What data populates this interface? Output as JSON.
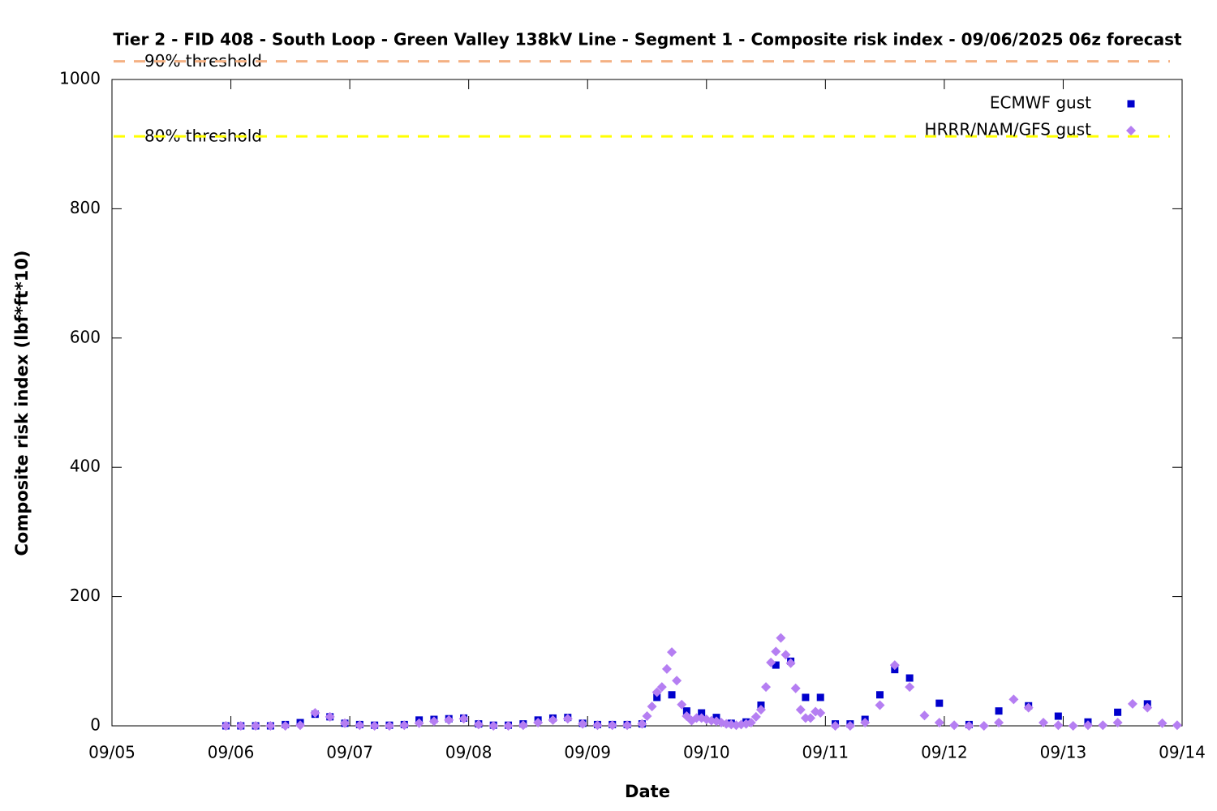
{
  "chart_data": {
    "type": "scatter",
    "title": "Tier 2 - FID 408 - South Loop - Green Valley 138kV Line - Segment 1 - Composite risk index - 09/06/2025 06z forecast",
    "x_label": "Date",
    "y_label": "Composite risk index (lbf*ft*10)",
    "xlim": [
      0,
      216
    ],
    "xticks": [
      {
        "value": 0,
        "label": "09/05"
      },
      {
        "value": 24,
        "label": "09/06"
      },
      {
        "value": 48,
        "label": "09/07"
      },
      {
        "value": 72,
        "label": "09/08"
      },
      {
        "value": 96,
        "label": "09/09"
      },
      {
        "value": 120,
        "label": "09/10"
      },
      {
        "value": 144,
        "label": "09/11"
      },
      {
        "value": 168,
        "label": "09/12"
      },
      {
        "value": 192,
        "label": "09/13"
      },
      {
        "value": 216,
        "label": "09/14"
      }
    ],
    "ylim": [
      0,
      1000
    ],
    "yticks": [
      0,
      200,
      400,
      600,
      800,
      1000
    ],
    "legend": "top-right",
    "thresholds": [
      {
        "name": "90% threshold",
        "value": 1028,
        "color": "#f4b183"
      },
      {
        "name": "80% threshold",
        "value": 912,
        "color": "#ffff00"
      }
    ],
    "series": [
      {
        "name": "ECMWF gust",
        "color": "#0000cc",
        "marker": "square",
        "x": [
          23,
          26,
          29,
          32,
          35,
          38,
          41,
          44,
          47,
          50,
          53,
          56,
          59,
          62,
          65,
          68,
          71,
          74,
          77,
          80,
          83,
          86,
          89,
          92,
          95,
          98,
          101,
          104,
          107,
          110,
          113,
          116,
          119,
          122,
          125,
          128,
          131,
          134,
          137,
          140,
          143,
          146,
          149,
          152,
          155,
          158,
          161,
          167,
          173,
          179,
          185,
          191,
          197,
          203,
          209
        ],
        "values": [
          0,
          0,
          0,
          0,
          2,
          5,
          18,
          14,
          4,
          2,
          1,
          1,
          2,
          9,
          10,
          11,
          12,
          3,
          1,
          1,
          3,
          9,
          12,
          13,
          4,
          2,
          2,
          2,
          3,
          44,
          48,
          23,
          20,
          13,
          4,
          6,
          32,
          94,
          100,
          44,
          44,
          3,
          3,
          10,
          48,
          87,
          74,
          35,
          2,
          23,
          31,
          15,
          6,
          21,
          34
        ]
      },
      {
        "name": "HRRR/NAM/GFS gust",
        "color": "#b57ef2",
        "marker": "diamond",
        "x": [
          23,
          26,
          29,
          32,
          35,
          38,
          41,
          44,
          47,
          50,
          53,
          56,
          59,
          62,
          65,
          68,
          71,
          74,
          77,
          80,
          83,
          86,
          89,
          92,
          95,
          98,
          101,
          104,
          107,
          108,
          109,
          110,
          111,
          112,
          113,
          114,
          115,
          116,
          117,
          118,
          119,
          120,
          121,
          122,
          123,
          124,
          125,
          126,
          127,
          128,
          129,
          130,
          131,
          132,
          133,
          134,
          135,
          136,
          137,
          138,
          139,
          140,
          141,
          142,
          143,
          146,
          149,
          152,
          155,
          158,
          161,
          164,
          167,
          170,
          173,
          176,
          179,
          182,
          185,
          188,
          191,
          194,
          197,
          200,
          203,
          206,
          209,
          212,
          215
        ],
        "values": [
          0,
          0,
          0,
          0,
          0,
          1,
          20,
          14,
          4,
          1,
          0,
          0,
          1,
          4,
          7,
          9,
          11,
          2,
          0,
          0,
          1,
          5,
          9,
          11,
          3,
          1,
          1,
          1,
          3,
          15,
          30,
          52,
          60,
          88,
          114,
          70,
          33,
          15,
          8,
          12,
          12,
          10,
          8,
          7,
          5,
          3,
          2,
          1,
          2,
          3,
          5,
          14,
          25,
          60,
          98,
          115,
          136,
          110,
          97,
          58,
          25,
          12,
          12,
          22,
          20,
          0,
          0,
          5,
          32,
          94,
          60,
          16,
          5,
          1,
          0,
          0,
          5,
          41,
          28,
          5,
          1,
          0,
          1,
          1,
          5,
          34,
          28,
          4,
          1
        ]
      }
    ]
  }
}
